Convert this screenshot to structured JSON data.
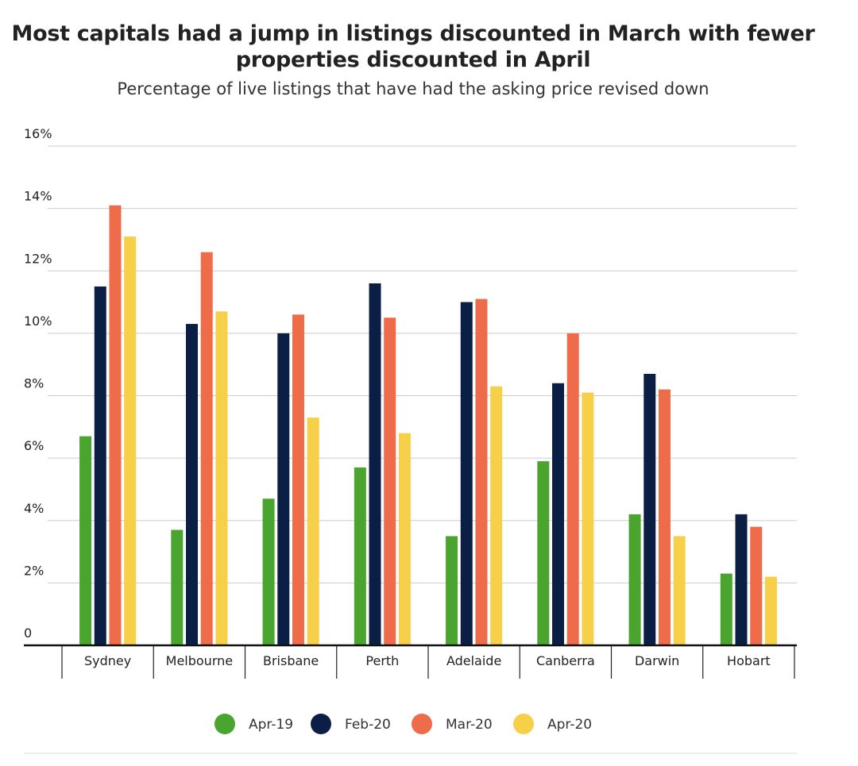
{
  "title_line1": "Most capitals had a jump in listings discounted in March with fewer",
  "title_line2": "properties discounted in April",
  "subtitle": "Percentage of live listings that have had the asking price revised down",
  "chart_data": {
    "type": "bar",
    "title": "Most capitals had a jump in listings discounted in March with fewer properties discounted in April",
    "subtitle": "Percentage of live listings that have had the asking price revised down",
    "categories": [
      "Sydney",
      "Melbourne",
      "Brisbane",
      "Perth",
      "Adelaide",
      "Canberra",
      "Darwin",
      "Hobart"
    ],
    "series": [
      {
        "name": "Apr-19",
        "color": "#4aa52e",
        "values": [
          6.7,
          3.7,
          4.7,
          5.7,
          3.5,
          5.9,
          4.2,
          2.3
        ]
      },
      {
        "name": "Feb-20",
        "color": "#0b1f45",
        "values": [
          11.5,
          10.3,
          10.0,
          11.6,
          11.0,
          8.4,
          8.7,
          4.2
        ]
      },
      {
        "name": "Mar-20",
        "color": "#ef6c4a",
        "values": [
          14.1,
          12.6,
          10.6,
          10.5,
          11.1,
          10.0,
          8.2,
          3.8
        ]
      },
      {
        "name": "Apr-20",
        "color": "#f7d04a",
        "values": [
          13.1,
          10.7,
          7.3,
          6.8,
          8.3,
          8.1,
          3.5,
          2.2
        ]
      }
    ],
    "yticks": [
      "0",
      "2%",
      "4%",
      "6%",
      "8%",
      "10%",
      "12%",
      "14%",
      "16%"
    ],
    "ylim": [
      0,
      16
    ],
    "grid": true,
    "legend_position": "bottom"
  }
}
